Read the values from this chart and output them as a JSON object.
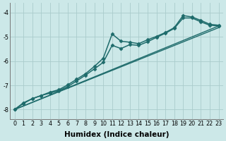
{
  "background_color": "#cce8e8",
  "grid_color": "#aacccc",
  "line_color": "#1e6b6b",
  "marker_color": "#1e6b6b",
  "xlabel": "Humidex (Indice chaleur)",
  "xlabel_fontsize": 7.5,
  "tick_fontsize": 5.8,
  "ylim": [
    -8.4,
    -3.6
  ],
  "xlim": [
    -0.5,
    23.5
  ],
  "yticks": [
    -8,
    -7,
    -6,
    -5,
    -4
  ],
  "xticks": [
    0,
    1,
    2,
    3,
    4,
    5,
    6,
    7,
    8,
    9,
    10,
    11,
    12,
    13,
    14,
    15,
    16,
    17,
    18,
    19,
    20,
    21,
    22,
    23
  ],
  "series": [
    {
      "x": [
        0,
        23
      ],
      "y": [
        -8.0,
        -4.55
      ],
      "marker": null,
      "markersize": 0,
      "linewidth": 1.0
    },
    {
      "x": [
        0,
        23
      ],
      "y": [
        -8.0,
        -4.62
      ],
      "marker": null,
      "markersize": 0,
      "linewidth": 1.0
    },
    {
      "x": [
        0,
        1,
        2,
        3,
        4,
        5,
        6,
        7,
        8,
        9,
        10,
        11,
        12,
        13,
        14,
        15,
        16,
        17,
        18,
        19,
        20,
        21,
        22,
        23
      ],
      "y": [
        -8.0,
        -7.75,
        -7.55,
        -7.42,
        -7.28,
        -7.18,
        -6.98,
        -6.75,
        -6.52,
        -6.22,
        -5.88,
        -4.88,
        -5.18,
        -5.22,
        -5.28,
        -5.12,
        -4.98,
        -4.82,
        -4.62,
        -4.12,
        -4.18,
        -4.32,
        -4.48,
        -4.52
      ],
      "marker": "D",
      "markersize": 2.5,
      "linewidth": 1.1
    },
    {
      "x": [
        0,
        1,
        2,
        3,
        4,
        5,
        6,
        7,
        8,
        9,
        10,
        11,
        12,
        13,
        14,
        15,
        16,
        17,
        18,
        19,
        20,
        21,
        22,
        23
      ],
      "y": [
        -8.0,
        -7.72,
        -7.55,
        -7.42,
        -7.32,
        -7.22,
        -7.05,
        -6.82,
        -6.58,
        -6.32,
        -6.05,
        -5.35,
        -5.48,
        -5.32,
        -5.35,
        -5.2,
        -5.02,
        -4.85,
        -4.65,
        -4.22,
        -4.22,
        -4.38,
        -4.52,
        -4.55
      ],
      "marker": "D",
      "markersize": 2.5,
      "linewidth": 1.1
    }
  ]
}
